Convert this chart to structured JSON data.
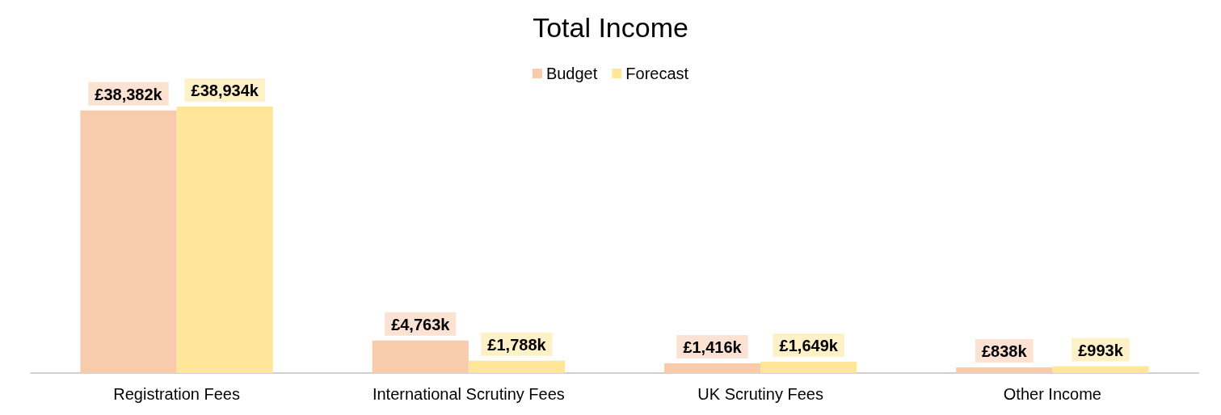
{
  "chart_data": {
    "type": "bar",
    "title": "Total Income",
    "categories": [
      "Registration Fees",
      "International Scrutiny Fees",
      "UK Scrutiny Fees",
      "Other Income"
    ],
    "series": [
      {
        "name": "Budget",
        "color": "#f8cbad",
        "values": [
          38382,
          4763,
          1416,
          838
        ],
        "value_labels": [
          "£38,382k",
          "£4,763k",
          "£1,416k",
          "£838k"
        ]
      },
      {
        "name": "Forecast",
        "color": "#ffe699",
        "values": [
          38934,
          1788,
          1649,
          993
        ],
        "value_labels": [
          "£38,934k",
          "£1,788k",
          "£1,649k",
          "£993k"
        ]
      }
    ],
    "legend": "top",
    "grid": false
  }
}
